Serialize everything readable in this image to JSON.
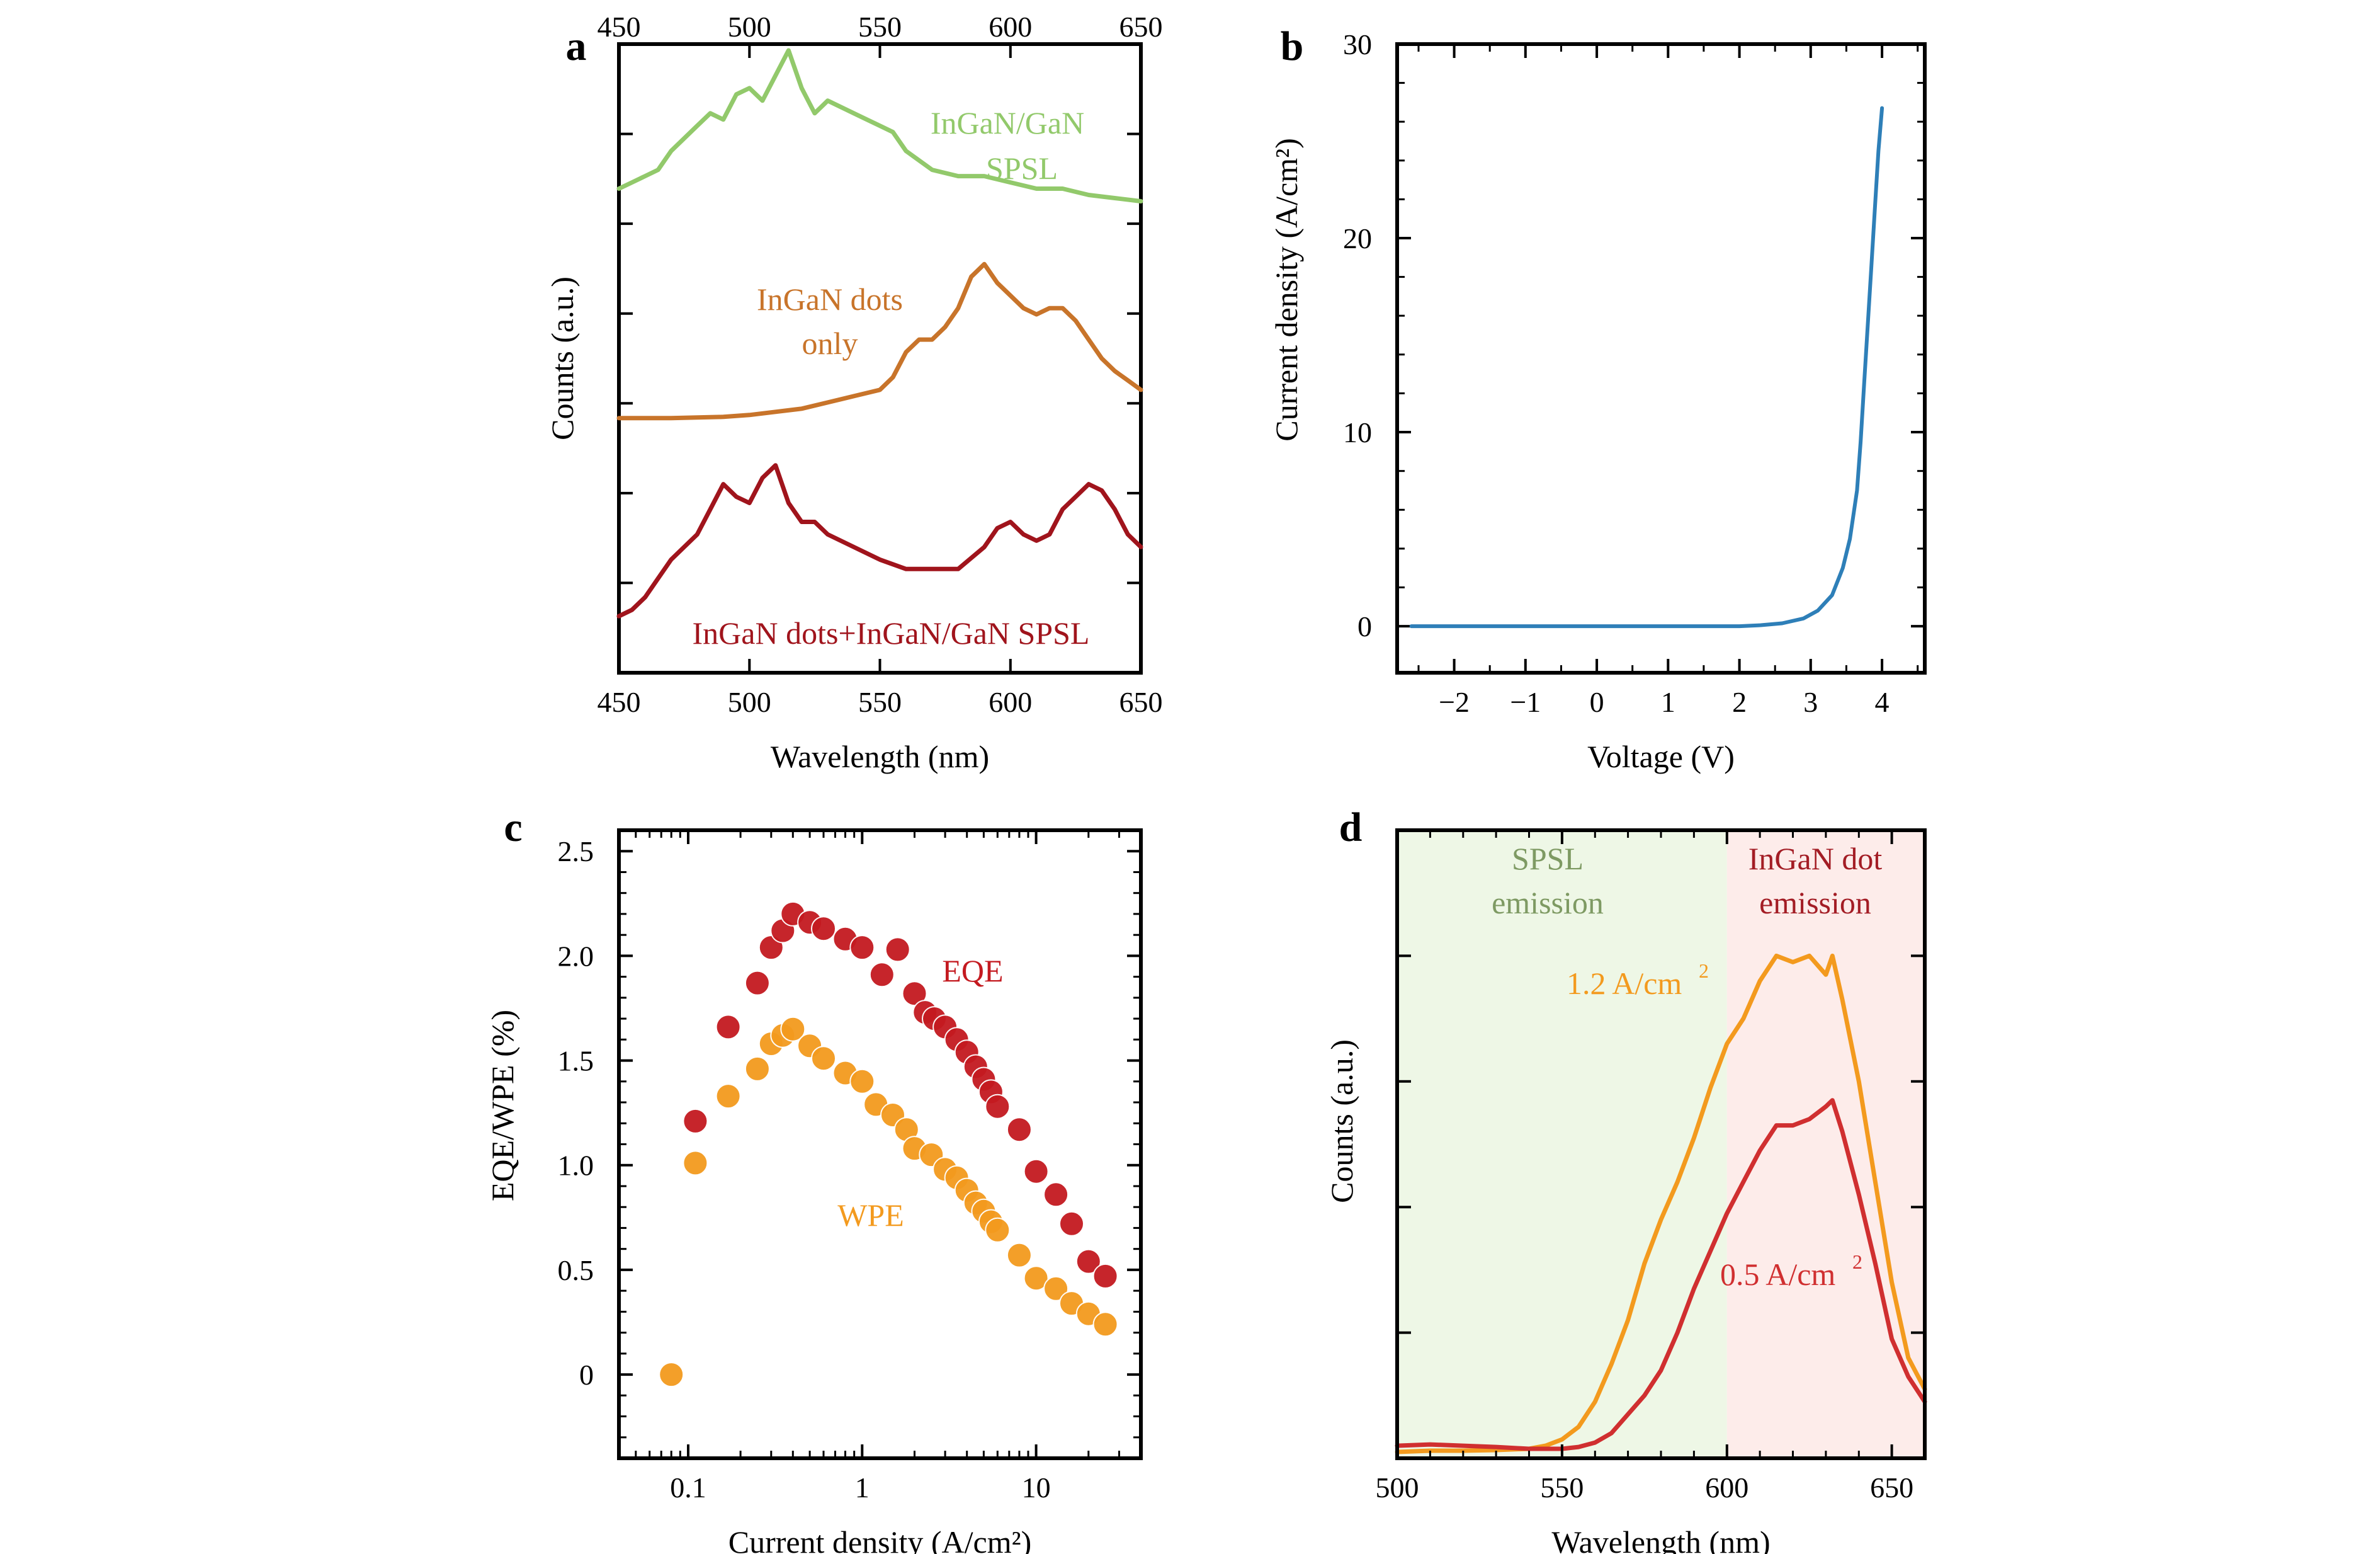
{
  "chart_data": [
    {
      "panel": "a",
      "type": "line",
      "xlabel": "Wavelength (nm)",
      "ylabel": "Counts (a.u.)",
      "xlim": [
        450,
        650
      ],
      "xticks": [
        450,
        500,
        550,
        600,
        650
      ],
      "x2ticks": [
        450,
        500,
        550,
        600,
        650
      ],
      "ylim": [
        0,
        1
      ],
      "y_tick_labels": false,
      "grid": false,
      "legend": "none",
      "series": [
        {
          "name": "InGaN/GaN SPSL",
          "label_lines": [
            "InGaN/GaN",
            "SPSL"
          ],
          "color": "#92c96b",
          "x": [
            450,
            455,
            460,
            465,
            470,
            475,
            480,
            485,
            490,
            495,
            500,
            505,
            510,
            515,
            520,
            525,
            530,
            535,
            540,
            545,
            550,
            555,
            560,
            570,
            580,
            590,
            600,
            610,
            620,
            630,
            640,
            650
          ],
          "y": [
            0.77,
            0.78,
            0.79,
            0.8,
            0.83,
            0.85,
            0.87,
            0.89,
            0.88,
            0.92,
            0.93,
            0.91,
            0.95,
            0.99,
            0.93,
            0.89,
            0.91,
            0.9,
            0.89,
            0.88,
            0.87,
            0.86,
            0.83,
            0.8,
            0.79,
            0.79,
            0.78,
            0.77,
            0.77,
            0.76,
            0.755,
            0.75
          ]
        },
        {
          "name": "InGaN dots only",
          "label_lines": [
            "InGaN dots",
            "only"
          ],
          "color": "#c8742a",
          "x": [
            450,
            460,
            470,
            480,
            490,
            500,
            510,
            520,
            530,
            540,
            545,
            550,
            555,
            560,
            565,
            570,
            575,
            580,
            585,
            590,
            595,
            600,
            605,
            610,
            615,
            620,
            625,
            630,
            635,
            640,
            645,
            650
          ],
          "y": [
            0.405,
            0.405,
            0.405,
            0.406,
            0.407,
            0.41,
            0.415,
            0.42,
            0.43,
            0.44,
            0.445,
            0.45,
            0.47,
            0.51,
            0.53,
            0.53,
            0.55,
            0.58,
            0.63,
            0.65,
            0.62,
            0.6,
            0.58,
            0.57,
            0.58,
            0.58,
            0.56,
            0.53,
            0.5,
            0.48,
            0.465,
            0.45
          ]
        },
        {
          "name": "InGaN dots+InGaN/GaN SPSL",
          "label_lines": [
            "InGaN dots+InGaN/GaN SPSL"
          ],
          "color": "#a0141c",
          "x": [
            450,
            455,
            460,
            465,
            470,
            475,
            480,
            485,
            490,
            495,
            500,
            505,
            510,
            515,
            520,
            525,
            530,
            540,
            550,
            560,
            570,
            580,
            590,
            595,
            600,
            605,
            610,
            615,
            620,
            625,
            630,
            635,
            640,
            645,
            650
          ],
          "y": [
            0.09,
            0.1,
            0.12,
            0.15,
            0.18,
            0.2,
            0.22,
            0.26,
            0.3,
            0.28,
            0.27,
            0.31,
            0.33,
            0.27,
            0.24,
            0.24,
            0.22,
            0.2,
            0.18,
            0.165,
            0.165,
            0.165,
            0.2,
            0.23,
            0.24,
            0.22,
            0.21,
            0.22,
            0.26,
            0.28,
            0.3,
            0.29,
            0.26,
            0.22,
            0.2
          ]
        }
      ]
    },
    {
      "panel": "b",
      "type": "line",
      "xlabel": "Voltage (V)",
      "ylabel": "Current density (A/cm²)",
      "xlim": [
        -2.8,
        4.6
      ],
      "ylim": [
        -2.4,
        30
      ],
      "xticks": [
        -2,
        -1,
        0,
        1,
        2,
        3,
        4
      ],
      "xtick_labels": [
        "−2",
        "−1",
        "0",
        "1",
        "2",
        "3",
        "4"
      ],
      "yticks": [
        0,
        10,
        20,
        30
      ],
      "grid": false,
      "legend": "none",
      "series": [
        {
          "color": "#2e7fb8",
          "x": [
            -2.6,
            -2,
            -1,
            0,
            1,
            2,
            2.3,
            2.6,
            2.9,
            3.1,
            3.3,
            3.45,
            3.55,
            3.65,
            3.7,
            3.75,
            3.8,
            3.85,
            3.9,
            3.95,
            4.0
          ],
          "y": [
            0,
            0,
            0,
            0,
            0,
            0,
            0.05,
            0.15,
            0.4,
            0.8,
            1.6,
            3.0,
            4.5,
            7.0,
            9.5,
            12.5,
            15.5,
            18.5,
            21.5,
            24.5,
            26.7
          ]
        }
      ]
    },
    {
      "panel": "c",
      "type": "scatter",
      "xlabel": "Current density (A/cm²)",
      "ylabel": "EQE/WPE (%)",
      "xscale": "log",
      "xlim": [
        0.04,
        40
      ],
      "ylim": [
        -0.4,
        2.6
      ],
      "xticks": [
        0.1,
        1,
        10
      ],
      "xtick_labels": [
        "0.1",
        "1",
        "10"
      ],
      "yticks": [
        0,
        0.5,
        1.0,
        1.5,
        2.0,
        2.5
      ],
      "ytick_labels": [
        "0",
        "0.5",
        "1.0",
        "1.5",
        "2.0",
        "2.5"
      ],
      "grid": false,
      "legend": "none",
      "series": [
        {
          "name": "EQE",
          "color": "#c41a20",
          "x": [
            0.11,
            0.17,
            0.25,
            0.3,
            0.35,
            0.4,
            0.5,
            0.6,
            0.8,
            1.0,
            1.3,
            1.6,
            2.0,
            2.3,
            2.6,
            3.0,
            3.5,
            4.0,
            4.5,
            5.0,
            5.5,
            6.0,
            8.0,
            10,
            13,
            16,
            20,
            25
          ],
          "y": [
            1.21,
            1.66,
            1.87,
            2.04,
            2.12,
            2.2,
            2.16,
            2.13,
            2.08,
            2.04,
            1.91,
            2.03,
            1.82,
            1.73,
            1.7,
            1.66,
            1.6,
            1.54,
            1.47,
            1.41,
            1.35,
            1.28,
            1.17,
            0.97,
            0.86,
            0.72,
            0.54,
            0.47
          ]
        },
        {
          "name": "WPE",
          "color": "#f39a1e",
          "x": [
            0.08,
            0.11,
            0.17,
            0.25,
            0.3,
            0.35,
            0.4,
            0.5,
            0.6,
            0.8,
            1.0,
            1.2,
            1.5,
            1.8,
            2.0,
            2.5,
            3.0,
            3.5,
            4.0,
            4.5,
            5.0,
            5.5,
            6.0,
            8.0,
            10,
            13,
            16,
            20,
            25
          ],
          "y": [
            0.0,
            1.01,
            1.33,
            1.46,
            1.58,
            1.62,
            1.65,
            1.57,
            1.51,
            1.44,
            1.4,
            1.29,
            1.24,
            1.17,
            1.08,
            1.05,
            0.98,
            0.94,
            0.88,
            0.82,
            0.78,
            0.73,
            0.69,
            0.57,
            0.46,
            0.41,
            0.34,
            0.29,
            0.24
          ]
        }
      ]
    },
    {
      "panel": "d",
      "type": "line",
      "xlabel": "Wavelength (nm)",
      "ylabel": "Counts (a.u.)",
      "xlim": [
        500,
        660
      ],
      "ylim": [
        0,
        1
      ],
      "xticks": [
        500,
        550,
        600,
        650
      ],
      "y_tick_labels": false,
      "grid": false,
      "legend": "none",
      "regions": [
        {
          "from": 500,
          "to": 600,
          "color": "#eef7e6",
          "label_lines": [
            "SPSL",
            "emission"
          ],
          "label_color": "#7e9a63"
        },
        {
          "from": 600,
          "to": 660,
          "color": "#fdecea",
          "label_lines": [
            "InGaN dot",
            "emission"
          ],
          "label_color": "#a31d25"
        }
      ],
      "series": [
        {
          "name": "1.2 A/cm²",
          "label_main": "1.2 A/cm",
          "label_sup": "2",
          "color": "#f39a1e",
          "x": [
            500,
            510,
            520,
            530,
            540,
            545,
            550,
            555,
            560,
            565,
            570,
            575,
            580,
            585,
            590,
            595,
            600,
            605,
            610,
            615,
            620,
            625,
            630,
            632,
            635,
            640,
            645,
            650,
            655,
            660
          ],
          "y": [
            0.01,
            0.012,
            0.012,
            0.013,
            0.015,
            0.02,
            0.03,
            0.05,
            0.09,
            0.15,
            0.22,
            0.31,
            0.38,
            0.44,
            0.51,
            0.59,
            0.66,
            0.7,
            0.76,
            0.8,
            0.79,
            0.8,
            0.77,
            0.8,
            0.73,
            0.6,
            0.44,
            0.28,
            0.16,
            0.11
          ]
        },
        {
          "name": "0.5 A/cm²",
          "label_main": "0.5 A/cm",
          "label_sup": "2",
          "color": "#d02f30",
          "x": [
            500,
            510,
            520,
            530,
            540,
            550,
            555,
            560,
            565,
            570,
            575,
            580,
            585,
            590,
            595,
            600,
            605,
            610,
            615,
            620,
            625,
            630,
            632,
            635,
            640,
            645,
            650,
            655,
            660
          ],
          "y": [
            0.02,
            0.022,
            0.02,
            0.018,
            0.015,
            0.015,
            0.018,
            0.025,
            0.04,
            0.07,
            0.1,
            0.14,
            0.2,
            0.27,
            0.33,
            0.39,
            0.44,
            0.49,
            0.53,
            0.53,
            0.54,
            0.56,
            0.57,
            0.52,
            0.42,
            0.31,
            0.19,
            0.13,
            0.09
          ]
        }
      ]
    }
  ]
}
